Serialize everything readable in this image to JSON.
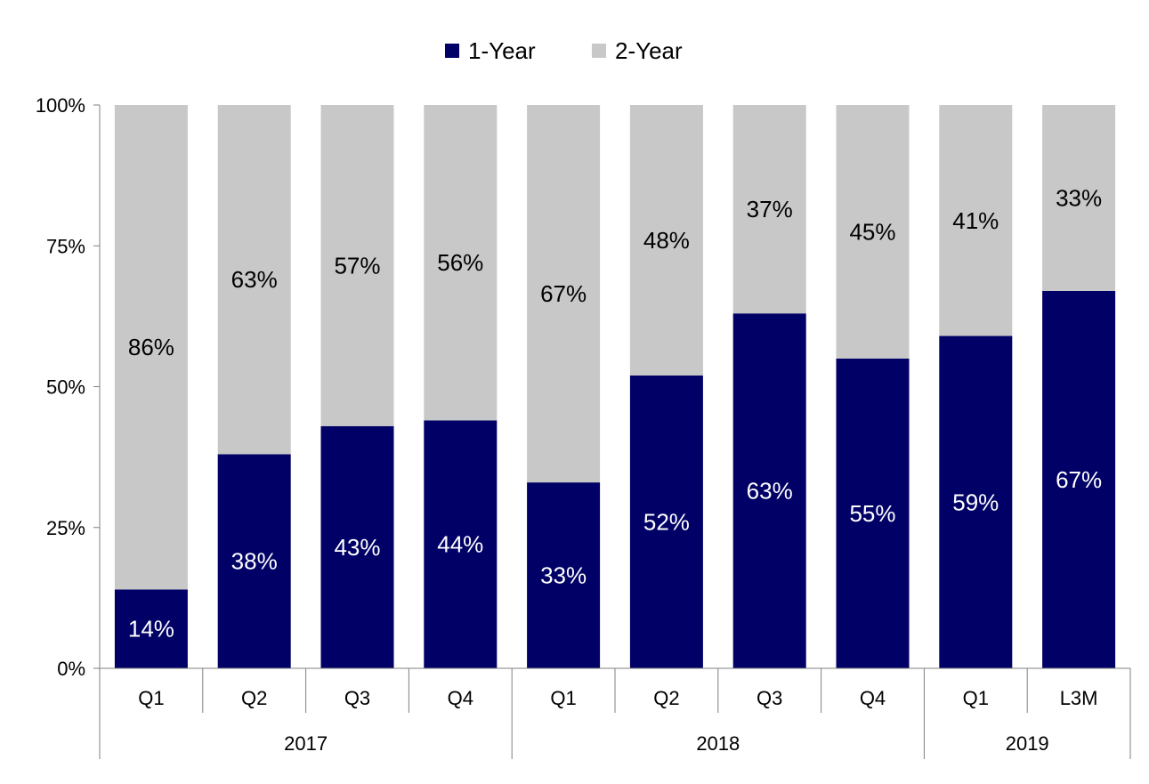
{
  "chart_data": {
    "type": "bar",
    "stacked": true,
    "percent_axis": true,
    "categories": [
      "Q1",
      "Q2",
      "Q3",
      "Q4",
      "Q1",
      "Q2",
      "Q3",
      "Q4",
      "Q1",
      "L3M"
    ],
    "groups": [
      {
        "label": "2017",
        "count": 4
      },
      {
        "label": "2018",
        "count": 4
      },
      {
        "label": "2019",
        "count": 2
      }
    ],
    "series": [
      {
        "name": "1-Year",
        "color": "#000066",
        "label_color": "#ffffff",
        "values": [
          14,
          38,
          43,
          44,
          33,
          52,
          63,
          55,
          59,
          67
        ]
      },
      {
        "name": "2-Year",
        "color": "#c8c8c8",
        "label_color": "#000000",
        "values": [
          86,
          63,
          57,
          56,
          67,
          48,
          37,
          45,
          41,
          33
        ]
      }
    ],
    "ylim": [
      0,
      100
    ],
    "yticks": [
      "0%",
      "25%",
      "50%",
      "75%",
      "100%"
    ],
    "legend_position": "top-center",
    "grid": false
  }
}
